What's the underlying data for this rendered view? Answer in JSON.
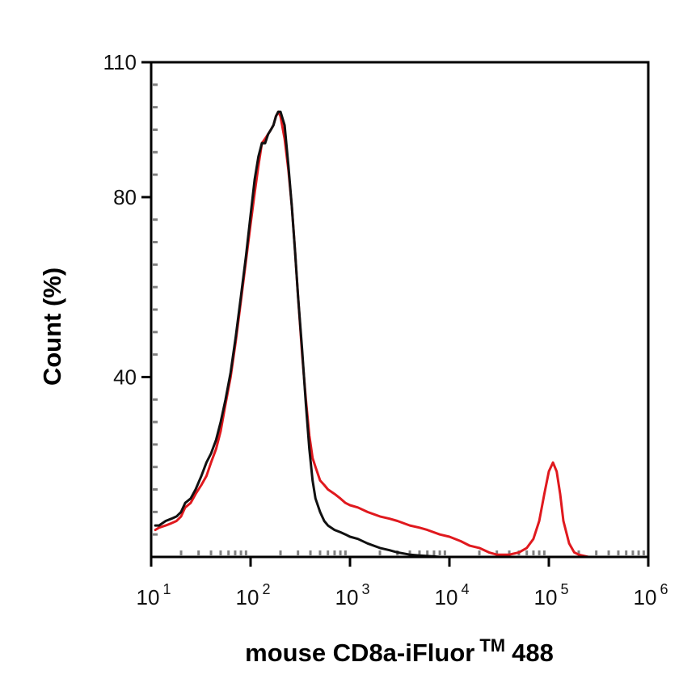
{
  "chart_data": {
    "type": "line",
    "xlabel": {
      "main": "mouse CD8a-iFluor",
      "superscript": "TM",
      "suffix": "488"
    },
    "ylabel": "Count (%)",
    "xscale": "log",
    "xlim": [
      10,
      1000000
    ],
    "ylim": [
      0,
      110
    ],
    "x_ticks": [
      {
        "value": 10,
        "base": "10",
        "exp": "1"
      },
      {
        "value": 100,
        "base": "10",
        "exp": "2"
      },
      {
        "value": 1000,
        "base": "10",
        "exp": "3"
      },
      {
        "value": 10000,
        "base": "10",
        "exp": "4"
      },
      {
        "value": 100000,
        "base": "10",
        "exp": "5"
      },
      {
        "value": 1000000,
        "base": "10",
        "exp": "6"
      }
    ],
    "y_ticks": [
      {
        "value": 40,
        "label": "40"
      },
      {
        "value": 80,
        "label": "80"
      },
      {
        "value": 110,
        "label": "110"
      }
    ],
    "y_minor_ticks": [
      5,
      10,
      15,
      20,
      25,
      30,
      35,
      45,
      50,
      55,
      60,
      65,
      70,
      75,
      85,
      90,
      95,
      100,
      105
    ],
    "grid": false,
    "legend": "none",
    "colors": {
      "frame": "#000000",
      "minor_tick": "#808080"
    },
    "series": [
      {
        "color": "#e0191e",
        "x": [
          11,
          12,
          14,
          16,
          18,
          20,
          22,
          25,
          28,
          32,
          36,
          40,
          45,
          50,
          56,
          63,
          71,
          80,
          90,
          100,
          110,
          120,
          130,
          140,
          150,
          160,
          170,
          180,
          190,
          200,
          220,
          240,
          260,
          280,
          300,
          330,
          360,
          390,
          420,
          450,
          500,
          550,
          600,
          700,
          800,
          900,
          1000,
          1200,
          1500,
          2000,
          2500,
          3000,
          4000,
          5000,
          6000,
          8000,
          10000,
          13000,
          16000,
          20000,
          25000,
          30000,
          40000,
          50000,
          60000,
          70000,
          80000,
          90000,
          100000,
          110000,
          120000,
          130000,
          140000,
          160000,
          180000,
          200000,
          250000
        ],
        "y": [
          6,
          6.5,
          7,
          7.5,
          8,
          9,
          11,
          12,
          14,
          16,
          18,
          21,
          24,
          28,
          34,
          40,
          48,
          57,
          66,
          74,
          81,
          87,
          92,
          93,
          94,
          95,
          96,
          98,
          99,
          98,
          93,
          86,
          78,
          68,
          58,
          45,
          35,
          27,
          22,
          20,
          17,
          16,
          15,
          14,
          13,
          12,
          11.5,
          11,
          10,
          9,
          8.5,
          8,
          7,
          6.5,
          6,
          5,
          4.5,
          3.5,
          2.5,
          2,
          1,
          0.5,
          0.5,
          1,
          2,
          4,
          8,
          14,
          19,
          21,
          19,
          14,
          8,
          3,
          1,
          0.5,
          0
        ]
      },
      {
        "color": "#111111",
        "x": [
          11,
          12,
          14,
          16,
          18,
          20,
          22,
          25,
          28,
          32,
          36,
          40,
          45,
          50,
          56,
          63,
          71,
          80,
          90,
          100,
          110,
          120,
          130,
          140,
          150,
          160,
          170,
          180,
          190,
          200,
          220,
          240,
          260,
          280,
          300,
          330,
          360,
          390,
          420,
          450,
          500,
          550,
          600,
          700,
          800,
          900,
          1000,
          1200,
          1500,
          2000,
          2500,
          3000,
          4000,
          5000,
          6000,
          7000,
          8000
        ],
        "y": [
          7,
          7,
          8,
          8.5,
          9,
          10,
          12,
          13,
          15,
          18,
          21,
          23,
          26,
          30,
          35,
          41,
          49,
          58,
          67,
          76,
          84,
          89,
          92,
          92,
          94,
          95,
          96,
          98,
          99,
          99,
          96,
          87,
          78,
          68,
          58,
          46,
          34,
          24,
          17,
          13,
          10,
          8,
          7,
          6,
          5.5,
          5,
          4.5,
          4,
          3,
          2,
          1.5,
          1,
          0.5,
          0.3,
          0.2,
          0.1,
          0
        ]
      }
    ]
  }
}
